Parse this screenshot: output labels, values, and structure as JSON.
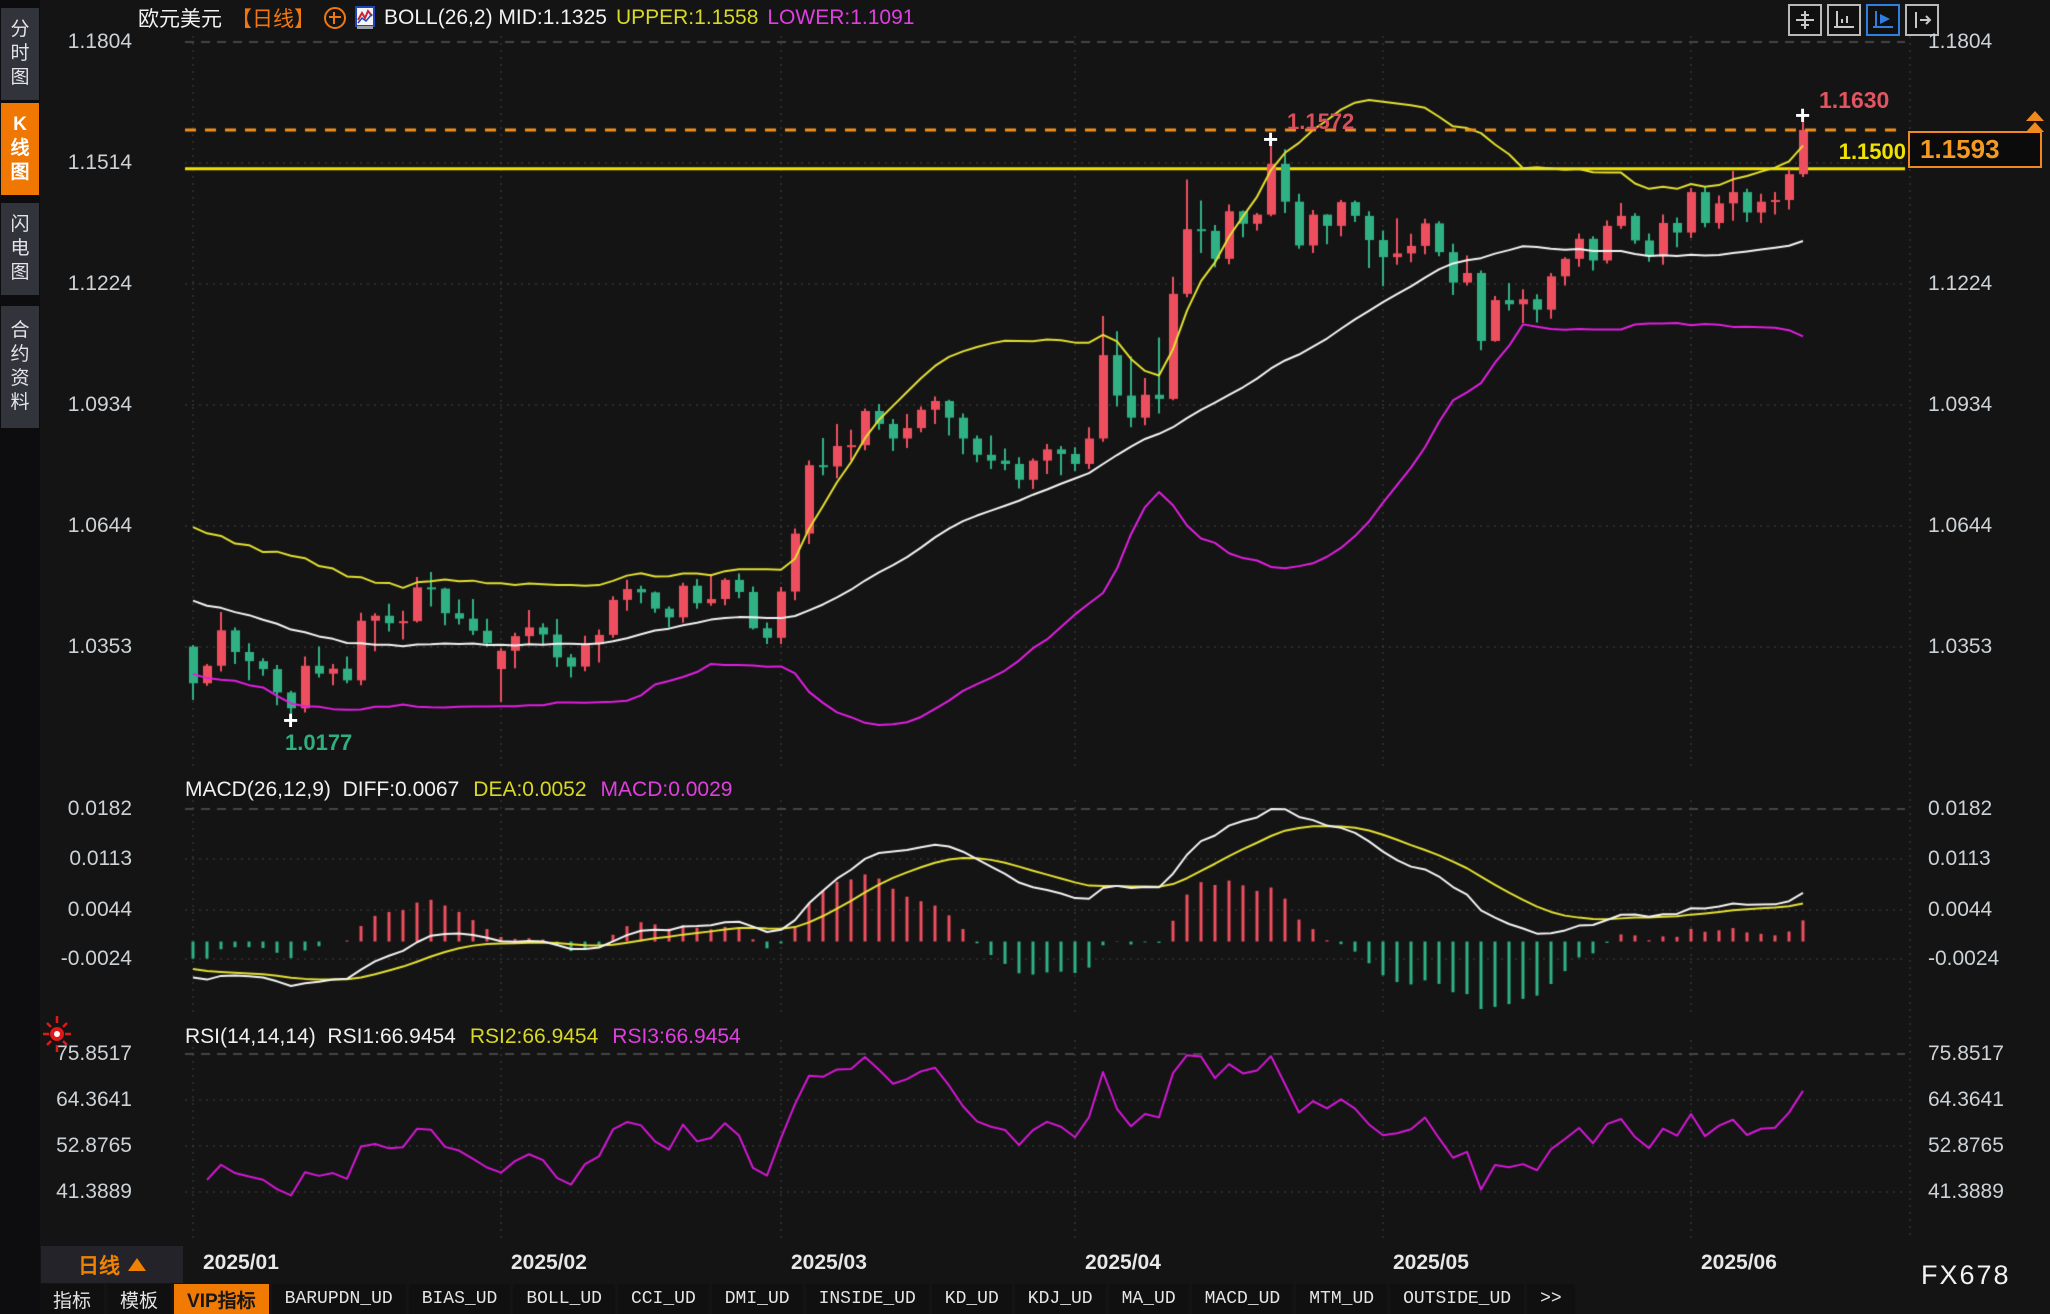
{
  "header": {
    "symbol": "欧元美元",
    "period_tag": "【日线】",
    "boll_text": "BOLL(26,2) MID:1.1325",
    "upper_text": "UPPER:1.1558",
    "lower_text": "LOWER:1.1091"
  },
  "sidebar": {
    "items": [
      {
        "label": "分时图",
        "active": false
      },
      {
        "label": "K线图",
        "active": true
      },
      {
        "label": "闪电图",
        "active": false
      },
      {
        "label": "合约资料",
        "active": false
      }
    ]
  },
  "toolbar": {
    "icons": [
      {
        "name": "crosshair-move-icon",
        "active": false
      },
      {
        "name": "axis-scale-icon",
        "active": false
      },
      {
        "name": "axis-play-icon",
        "active": true
      },
      {
        "name": "detach-window-icon",
        "active": false
      }
    ]
  },
  "price_axis": {
    "left_ticks": [
      "1.1804",
      "1.1514",
      "1.1224",
      "1.0934",
      "1.0644",
      "1.0353"
    ],
    "right_ticks": [
      "1.1804",
      "",
      "1.1224",
      "1.0934",
      "1.0644",
      "1.0353"
    ]
  },
  "macd_panel": {
    "title": "MACD(26,12,9)",
    "diff_label": "DIFF:0.0067",
    "dea_label": "DEA:0.0052",
    "macd_label": "MACD:0.0029",
    "ticks": [
      "0.0182",
      "0.0113",
      "0.0044",
      "-0.0024"
    ]
  },
  "rsi_panel": {
    "title": "RSI(14,14,14)",
    "rsi1_label": "RSI1:66.9454",
    "rsi2_label": "RSI2:66.9454",
    "rsi3_label": "RSI3:66.9454",
    "ticks": [
      "75.8517",
      "64.3641",
      "52.8765",
      "41.3889"
    ]
  },
  "markers": {
    "session_high": "1.1630",
    "prev_high": "1.1572",
    "session_low": "1.0177",
    "hline_label": "1.1500",
    "last_price": "1.1593"
  },
  "footer": {
    "period": "日线",
    "months": [
      "2025/01",
      "2025/02",
      "2025/03",
      "2025/04",
      "2025/05",
      "2025/06"
    ],
    "tabs": [
      {
        "label": "指标",
        "active": false,
        "mono": false
      },
      {
        "label": "模板",
        "active": false,
        "mono": false
      },
      {
        "label": "VIP指标",
        "active": true,
        "mono": false
      },
      {
        "label": "BARUPDN_UD",
        "active": false,
        "mono": true
      },
      {
        "label": "BIAS_UD",
        "active": false,
        "mono": true
      },
      {
        "label": "BOLL_UD",
        "active": false,
        "mono": true
      },
      {
        "label": "CCI_UD",
        "active": false,
        "mono": true
      },
      {
        "label": "DMI_UD",
        "active": false,
        "mono": true
      },
      {
        "label": "INSIDE_UD",
        "active": false,
        "mono": true
      },
      {
        "label": "KD_UD",
        "active": false,
        "mono": true
      },
      {
        "label": "KDJ_UD",
        "active": false,
        "mono": true
      },
      {
        "label": "MA_UD",
        "active": false,
        "mono": true
      },
      {
        "label": "MACD_UD",
        "active": false,
        "mono": true
      },
      {
        "label": "MTM_UD",
        "active": false,
        "mono": true
      },
      {
        "label": "OUTSIDE_UD",
        "active": false,
        "mono": true
      },
      {
        "label": ">>",
        "active": false,
        "mono": true
      }
    ],
    "watermark": "FX678"
  },
  "colors": {
    "up": "#ee4f5e",
    "down": "#2fb183",
    "boll_upper": "#e4e030",
    "boll_mid": "#f4f4f4",
    "boll_lower": "#e11fe1",
    "macd_diff": "#f4f4f4",
    "macd_dea": "#e4e030",
    "rsi_line": "#d517d5",
    "price_line": "#f0921e",
    "hline": "#f0e300",
    "grid": "#454545",
    "accent_orange": "#f07802",
    "label_high": "#e05560",
    "label_low": "#2fae7e",
    "label_hline": "#f0e300"
  },
  "chart_data": {
    "type": "candlestick",
    "title": "欧元美元 日线 (EUR/USD Daily)",
    "y_ticks": [
      1.1804,
      1.1514,
      1.1224,
      1.0934,
      1.0644,
      1.0353
    ],
    "macd_ticks": [
      0.0182,
      0.0113,
      0.0044,
      -0.0024
    ],
    "rsi_ticks": [
      75.8517,
      64.3641,
      52.8765,
      41.3889
    ],
    "current_price": 1.1593,
    "horizontal_line": 1.15,
    "month_start_indices": [
      0,
      22,
      42,
      63,
      85,
      107
    ],
    "high_marker": {
      "index": 115,
      "price": 1.163
    },
    "prev_high_marker": {
      "index": 77,
      "price": 1.1572
    },
    "low_marker": {
      "index": 7,
      "price": 1.0177
    },
    "boll": {
      "period": 26,
      "stddev": 2,
      "mid": 1.1325,
      "upper": 1.1558,
      "lower": 1.1091
    },
    "macd": {
      "fast": 12,
      "slow": 26,
      "signal": 9,
      "diff": 0.0067,
      "dea": 0.0052,
      "macd": 0.0029
    },
    "rsi": {
      "periods": [
        14,
        14,
        14
      ],
      "values": [
        66.9454,
        66.9454,
        66.9454
      ]
    },
    "candles": [
      [
        1.0354,
        1.0358,
        1.0226,
        1.0266
      ],
      [
        1.0266,
        1.0312,
        1.026,
        1.0308
      ],
      [
        1.0308,
        1.0437,
        1.0294,
        1.0393
      ],
      [
        1.0393,
        1.04,
        1.0312,
        1.0341
      ],
      [
        1.0341,
        1.0362,
        1.0273,
        1.0319
      ],
      [
        1.0319,
        1.0326,
        1.0284,
        1.03
      ],
      [
        1.03,
        1.031,
        1.0213,
        1.0244
      ],
      [
        1.0244,
        1.0248,
        1.0177,
        1.0206
      ],
      [
        1.0206,
        1.033,
        1.0196,
        1.0308
      ],
      [
        1.0308,
        1.0354,
        1.028,
        1.0289
      ],
      [
        1.0289,
        1.0312,
        1.0261,
        1.0301
      ],
      [
        1.0301,
        1.033,
        1.0266,
        1.0273
      ],
      [
        1.0273,
        1.0435,
        1.0261,
        1.0416
      ],
      [
        1.0416,
        1.0434,
        1.0343,
        1.0428
      ],
      [
        1.0428,
        1.0457,
        1.039,
        1.041
      ],
      [
        1.041,
        1.044,
        1.0371,
        1.0415
      ],
      [
        1.0415,
        1.0521,
        1.0412,
        1.0496
      ],
      [
        1.0496,
        1.0533,
        1.045,
        1.0493
      ],
      [
        1.0493,
        1.0495,
        1.0405,
        1.0434
      ],
      [
        1.0434,
        1.0467,
        1.0407,
        1.0421
      ],
      [
        1.0421,
        1.0468,
        1.0382,
        1.0392
      ],
      [
        1.0392,
        1.0421,
        1.0354,
        1.0362
      ],
      [
        1.03,
        1.035,
        1.0221,
        1.0344
      ],
      [
        1.0344,
        1.0387,
        1.0302,
        1.0379
      ],
      [
        1.0379,
        1.0442,
        1.036,
        1.04
      ],
      [
        1.04,
        1.041,
        1.0358,
        1.0383
      ],
      [
        1.0383,
        1.042,
        1.0305,
        1.0328
      ],
      [
        1.0328,
        1.0336,
        1.028,
        1.0306
      ],
      [
        1.0306,
        1.038,
        1.0295,
        1.036
      ],
      [
        1.036,
        1.0395,
        1.0316,
        1.0382
      ],
      [
        1.0382,
        1.0475,
        1.0375,
        1.0466
      ],
      [
        1.0466,
        1.0514,
        1.044,
        1.0492
      ],
      [
        1.0492,
        1.05,
        1.0458,
        1.0484
      ],
      [
        1.0484,
        1.0486,
        1.0435,
        1.0445
      ],
      [
        1.0445,
        1.045,
        1.04,
        1.0424
      ],
      [
        1.0424,
        1.0507,
        1.0411,
        1.05
      ],
      [
        1.05,
        1.0516,
        1.0445,
        1.0458
      ],
      [
        1.0458,
        1.0528,
        1.0452,
        1.0468
      ],
      [
        1.0468,
        1.0518,
        1.0453,
        1.0514
      ],
      [
        1.0514,
        1.0529,
        1.047,
        1.0485
      ],
      [
        1.0485,
        1.0498,
        1.0395,
        1.0398
      ],
      [
        1.0398,
        1.0412,
        1.036,
        1.0375
      ],
      [
        1.0375,
        1.0497,
        1.036,
        1.0486
      ],
      [
        1.0486,
        1.0637,
        1.0465,
        1.0625
      ],
      [
        1.0625,
        1.08,
        1.06,
        1.0789
      ],
      [
        1.0789,
        1.0854,
        1.0765,
        1.0786
      ],
      [
        1.0786,
        1.0888,
        1.0758,
        1.0835
      ],
      [
        1.0835,
        1.0874,
        1.08,
        1.0837
      ],
      [
        1.0837,
        1.0925,
        1.0825,
        1.0919
      ],
      [
        1.0919,
        1.0936,
        1.0874,
        1.0888
      ],
      [
        1.0888,
        1.09,
        1.0823,
        1.0853
      ],
      [
        1.0853,
        1.0912,
        1.083,
        1.0878
      ],
      [
        1.0878,
        1.093,
        1.0868,
        1.0922
      ],
      [
        1.0922,
        1.0954,
        1.0888,
        1.0943
      ],
      [
        1.0943,
        1.0946,
        1.086,
        1.0903
      ],
      [
        1.0903,
        1.0913,
        1.0815,
        1.0853
      ],
      [
        1.0853,
        1.086,
        1.0796,
        1.0814
      ],
      [
        1.0814,
        1.086,
        1.078,
        1.08
      ],
      [
        1.08,
        1.0829,
        1.0777,
        1.0792
      ],
      [
        1.0792,
        1.0808,
        1.0733,
        1.0754
      ],
      [
        1.0754,
        1.0805,
        1.0732,
        1.08
      ],
      [
        1.08,
        1.084,
        1.0768,
        1.0827
      ],
      [
        1.0827,
        1.0835,
        1.0765,
        1.0816
      ],
      [
        1.0816,
        1.0832,
        1.0775,
        1.0792
      ],
      [
        1.0792,
        1.088,
        1.078,
        1.0853
      ],
      [
        1.0853,
        1.1147,
        1.0845,
        1.1053
      ],
      [
        1.1053,
        1.111,
        1.093,
        1.0956
      ],
      [
        1.0956,
        1.105,
        1.088,
        1.0903
      ],
      [
        1.0903,
        1.0998,
        1.0885,
        1.0958
      ],
      [
        1.0958,
        1.1095,
        1.0913,
        1.0948
      ],
      [
        1.0948,
        1.1241,
        1.0945,
        1.12
      ],
      [
        1.12,
        1.1474,
        1.1192,
        1.1355
      ],
      [
        1.1355,
        1.1424,
        1.1298,
        1.1351
      ],
      [
        1.1351,
        1.1365,
        1.1264,
        1.1284
      ],
      [
        1.1284,
        1.1414,
        1.1271,
        1.1398
      ],
      [
        1.1398,
        1.14,
        1.1336,
        1.1368
      ],
      [
        1.1368,
        1.1394,
        1.1352,
        1.139
      ],
      [
        1.139,
        1.1572,
        1.1386,
        1.1512
      ],
      [
        1.1512,
        1.1547,
        1.1394,
        1.1421
      ],
      [
        1.1421,
        1.144,
        1.1308,
        1.1316
      ],
      [
        1.1316,
        1.1401,
        1.1298,
        1.139
      ],
      [
        1.139,
        1.1391,
        1.1319,
        1.1363
      ],
      [
        1.1363,
        1.1425,
        1.1338,
        1.142
      ],
      [
        1.142,
        1.1424,
        1.1372,
        1.1387
      ],
      [
        1.1387,
        1.1398,
        1.1262,
        1.1329
      ],
      [
        1.1329,
        1.1352,
        1.1218,
        1.1288
      ],
      [
        1.1288,
        1.1381,
        1.127,
        1.1297
      ],
      [
        1.1297,
        1.1344,
        1.1276,
        1.1315
      ],
      [
        1.1315,
        1.138,
        1.1295,
        1.1369
      ],
      [
        1.1369,
        1.1374,
        1.129,
        1.13
      ],
      [
        1.13,
        1.132,
        1.1197,
        1.1227
      ],
      [
        1.1227,
        1.1292,
        1.122,
        1.125
      ],
      [
        1.125,
        1.1256,
        1.1065,
        1.1087
      ],
      [
        1.1087,
        1.1195,
        1.1085,
        1.1185
      ],
      [
        1.1185,
        1.1226,
        1.116,
        1.1175
      ],
      [
        1.1175,
        1.1211,
        1.113,
        1.1187
      ],
      [
        1.1187,
        1.1199,
        1.1131,
        1.1162
      ],
      [
        1.1162,
        1.125,
        1.114,
        1.1242
      ],
      [
        1.1242,
        1.1288,
        1.122,
        1.1284
      ],
      [
        1.1284,
        1.1345,
        1.1265,
        1.1332
      ],
      [
        1.1332,
        1.1338,
        1.1256,
        1.128
      ],
      [
        1.128,
        1.1376,
        1.1273,
        1.1363
      ],
      [
        1.1363,
        1.1418,
        1.1356,
        1.1387
      ],
      [
        1.1387,
        1.1393,
        1.132,
        1.1328
      ],
      [
        1.1328,
        1.1345,
        1.1277,
        1.129
      ],
      [
        1.129,
        1.139,
        1.127,
        1.137
      ],
      [
        1.137,
        1.1383,
        1.1312,
        1.1347
      ],
      [
        1.1347,
        1.1454,
        1.1334,
        1.1444
      ],
      [
        1.1444,
        1.1456,
        1.136,
        1.137
      ],
      [
        1.137,
        1.1436,
        1.1356,
        1.1417
      ],
      [
        1.1417,
        1.1495,
        1.1375,
        1.1444
      ],
      [
        1.1444,
        1.1452,
        1.1372,
        1.1395
      ],
      [
        1.1395,
        1.144,
        1.137,
        1.1421
      ],
      [
        1.1421,
        1.1444,
        1.139,
        1.1425
      ],
      [
        1.1425,
        1.1498,
        1.1402,
        1.1487
      ],
      [
        1.1487,
        1.163,
        1.148,
        1.1593
      ]
    ]
  }
}
